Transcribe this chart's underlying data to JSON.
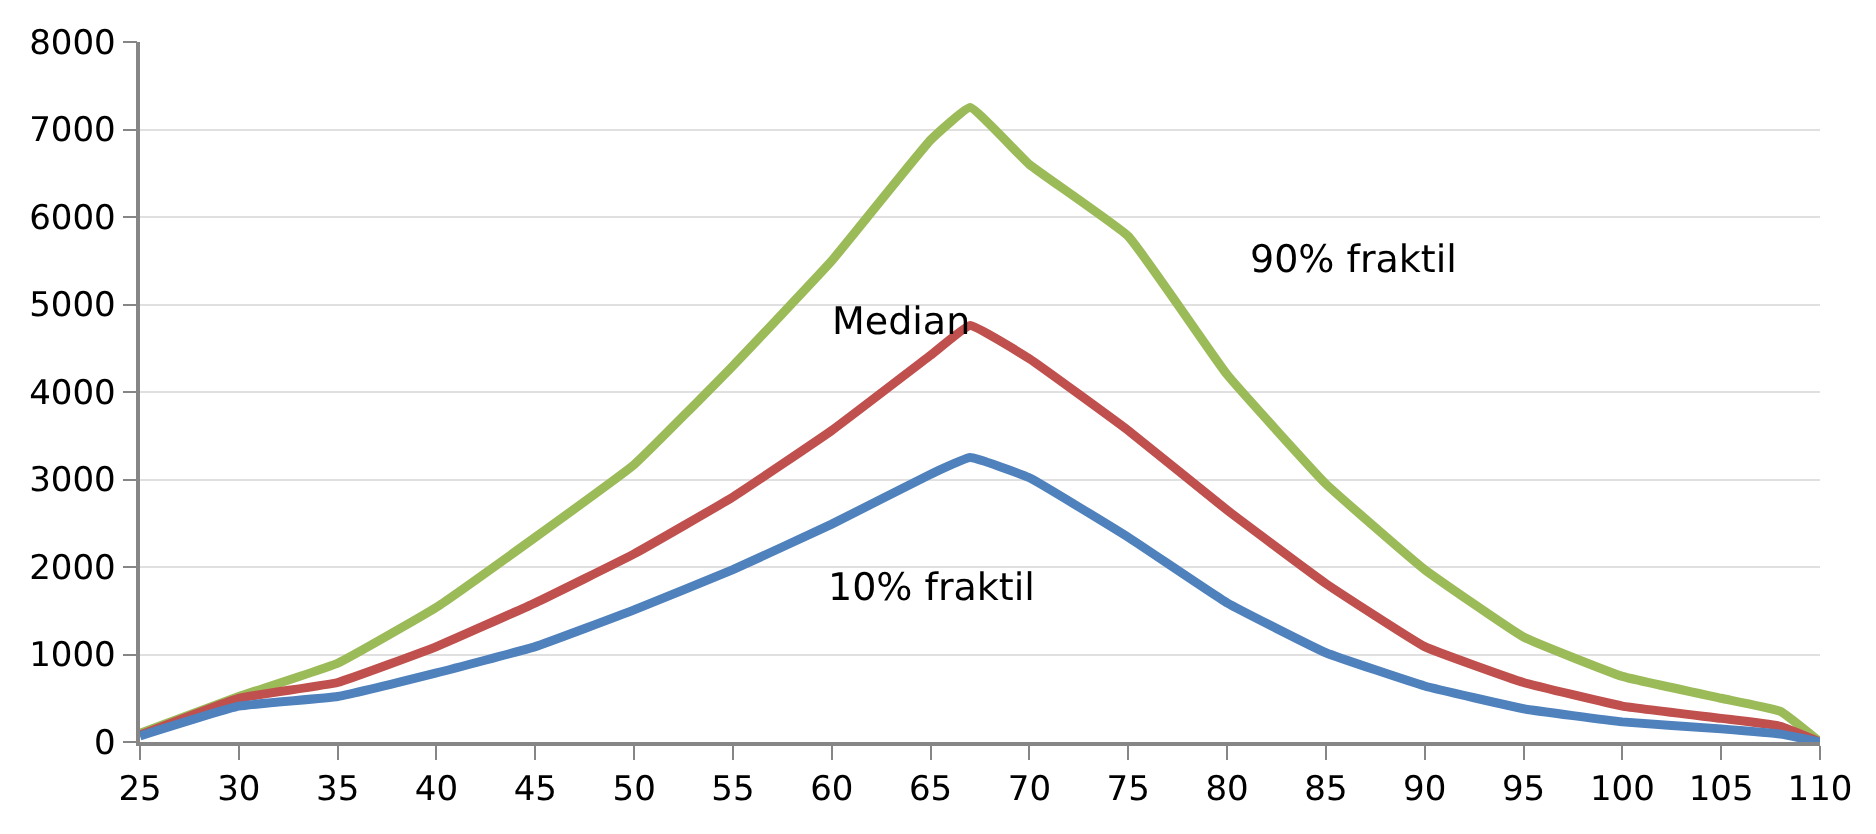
{
  "chart_data": {
    "type": "line",
    "x": [
      25,
      30,
      35,
      40,
      45,
      50,
      55,
      60,
      65,
      67,
      70,
      75,
      80,
      85,
      90,
      95,
      100,
      105,
      108,
      110
    ],
    "series": [
      {
        "name": "90% fraktil",
        "color": "#9bbb59",
        "values": [
          100,
          520,
          900,
          1540,
          2340,
          3170,
          4300,
          5500,
          6880,
          7250,
          6600,
          5780,
          4200,
          2950,
          1970,
          1200,
          750,
          500,
          350,
          0
        ]
      },
      {
        "name": "Median",
        "color": "#c0504d",
        "values": [
          80,
          500,
          680,
          1090,
          1590,
          2150,
          2800,
          3560,
          4420,
          4760,
          4380,
          3560,
          2650,
          1810,
          1090,
          680,
          410,
          270,
          180,
          0
        ]
      },
      {
        "name": "10% fraktil",
        "color": "#4f81bd",
        "values": [
          70,
          410,
          520,
          790,
          1090,
          1510,
          1970,
          2490,
          3060,
          3250,
          3020,
          2340,
          1590,
          1020,
          640,
          380,
          230,
          150,
          90,
          0
        ]
      }
    ],
    "xlim": [
      25,
      110
    ],
    "xticks": [
      25,
      30,
      35,
      40,
      45,
      50,
      55,
      60,
      65,
      70,
      75,
      80,
      85,
      90,
      95,
      100,
      105,
      110
    ],
    "ylim": [
      0,
      8000
    ],
    "yticks": [
      0,
      1000,
      2000,
      3000,
      4000,
      5000,
      6000,
      7000,
      8000
    ],
    "grid": "y",
    "legend": false,
    "marker": "none",
    "line_style": "solid"
  }
}
